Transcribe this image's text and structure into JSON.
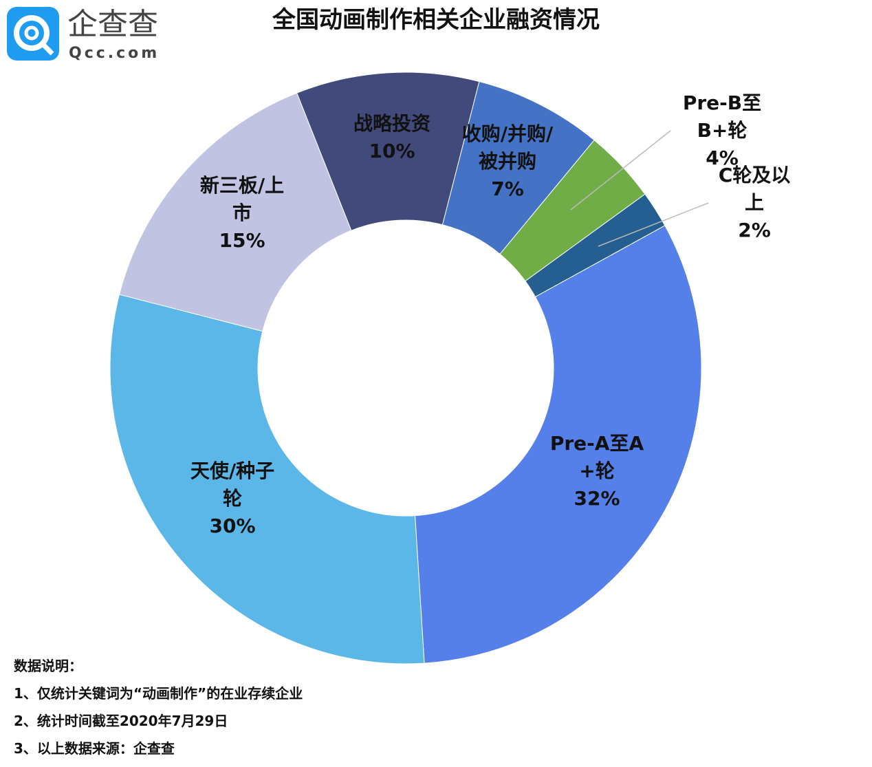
{
  "logo": {
    "name": "企查查",
    "url": "Qcc.com"
  },
  "chart_data": {
    "type": "donut",
    "title": "全国动画制作相关企业融资情况",
    "categories": [
      "Pre-A至A+轮",
      "天使/种子轮",
      "新三板/上市",
      "战略投资",
      "收购/并购/被并购",
      "Pre-B至B+轮",
      "C轮及以上"
    ],
    "values": [
      32,
      30,
      15,
      10,
      7,
      4,
      2
    ],
    "value_labels": [
      "32%",
      "30%",
      "15%",
      "10%",
      "7%",
      "4%",
      "2%"
    ],
    "colors": [
      "#5680e9",
      "#5bb7e8",
      "#c1c3e2",
      "#414a7b",
      "#4472c4",
      "#70ad47",
      "#255e91"
    ]
  },
  "notes": {
    "title": "数据说明：",
    "items": [
      "1、仅统计关键词为“动画制作”的在业存续企业",
      "2、统计时间截至2020年7月29日",
      "3、以上数据来源：企查查"
    ]
  }
}
